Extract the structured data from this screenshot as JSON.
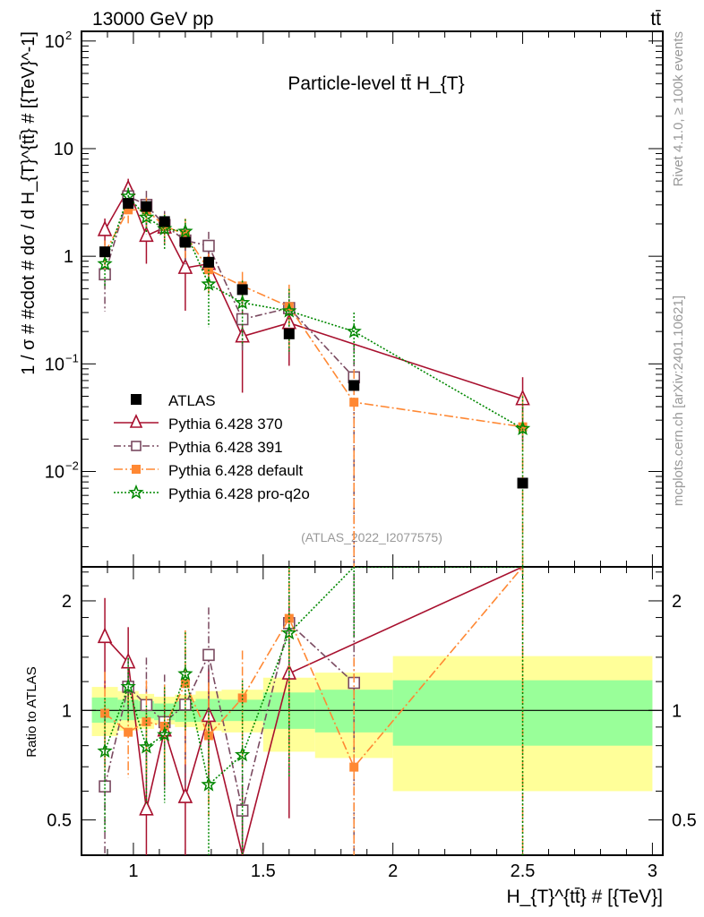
{
  "chart_data": {
    "type": "scatter",
    "header_left": "13000 GeV pp",
    "header_right": "tt̄",
    "title": "Particle-level tt̄  H_{T}",
    "xlabel": "H_{T}^{tt̄} # [{TeV}]",
    "ylabel": "1 / σ # #cdot # dσ / d H_{T}^{tt̄} # [{TeV}^-1]",
    "ratio_ylabel": "Ratio to ATLAS",
    "side_label_top": "Rivet 4.1.0, ≥ 100k events",
    "side_label_bottom": "mcplots.cern.ch [arXiv:2401.10621]",
    "analysis_label": "(ATLAS_2022_I2077575)",
    "xlim": [
      0.8,
      3.04
    ],
    "ylim": [
      0.0013,
      123
    ],
    "yscale": "log",
    "ratio_ylim": [
      0.4,
      2.48
    ],
    "ratio_yscale": "log",
    "x_ticks": [
      "1",
      "1.5",
      "2",
      "2.5",
      "3"
    ],
    "x_tick_values": [
      1,
      1.5,
      2,
      2.5,
      3
    ],
    "y_ticks": [
      "10^2",
      "10",
      "1",
      "10^-1",
      "10^-2"
    ],
    "y_tick_values": [
      100,
      10,
      1,
      0.1,
      0.01
    ],
    "ratio_ticks": [
      "2",
      "1",
      "0.5"
    ],
    "ratio_tick_values": [
      2,
      1,
      0.5
    ],
    "legend_position": "lower-left",
    "bin_edges": [
      0.84,
      0.94,
      1.02,
      1.08,
      1.16,
      1.24,
      1.34,
      1.5,
      1.7,
      2.0,
      3.0
    ],
    "x": [
      0.89,
      0.98,
      1.05,
      1.12,
      1.2,
      1.29,
      1.42,
      1.6,
      1.85,
      2.5
    ],
    "data": {
      "name": "ATLAS",
      "values": [
        1.1,
        3.1,
        2.9,
        2.1,
        1.35,
        0.88,
        0.49,
        0.19,
        0.063,
        0.0078
      ],
      "band_stat_lo": [
        0.925,
        0.94,
        0.95,
        0.94,
        0.93,
        0.93,
        0.935,
        0.89,
        0.87,
        0.8
      ],
      "band_stat_hi": [
        1.085,
        1.07,
        1.06,
        1.045,
        1.06,
        1.075,
        1.07,
        1.12,
        1.14,
        1.21
      ],
      "band_tot_lo": [
        0.85,
        0.88,
        0.89,
        0.915,
        0.9,
        0.88,
        0.87,
        0.77,
        0.74,
        0.6
      ],
      "band_tot_hi": [
        1.16,
        1.13,
        1.11,
        1.09,
        1.105,
        1.13,
        1.14,
        1.23,
        1.27,
        1.41
      ],
      "color": "#000000"
    },
    "series": [
      {
        "name": "Pythia 6.428 370",
        "color": "#a8102e",
        "marker": "triangle-open",
        "dash": "",
        "values": [
          1.75,
          4.2,
          1.55,
          1.85,
          0.78,
          0.85,
          0.18,
          0.24,
          null,
          0.047
        ],
        "rel_err": [
          0.28,
          0.25,
          0.45,
          0.3,
          0.6,
          0.35,
          0.7,
          0.6,
          null,
          0.6
        ]
      },
      {
        "name": "Pythia 6.428 391",
        "color": "#7a4a60",
        "marker": "square-open",
        "dash": "8,3,2,3",
        "values": [
          0.68,
          3.6,
          3.0,
          1.95,
          1.4,
          1.25,
          0.26,
          0.33,
          0.075,
          null
        ],
        "rel_err": [
          0.55,
          0.2,
          0.35,
          0.35,
          0.4,
          0.35,
          0.5,
          0.5,
          1.0,
          null
        ]
      },
      {
        "name": "Pythia 6.428 default",
        "color": "#ff8833",
        "marker": "square-filled",
        "dash": "10,3,2,3",
        "values": [
          1.08,
          2.7,
          2.7,
          1.9,
          1.6,
          0.75,
          0.53,
          0.34,
          0.044,
          0.026
        ],
        "rel_err": [
          0.3,
          0.25,
          0.3,
          0.3,
          0.4,
          0.4,
          0.35,
          0.6,
          1.0,
          1.0
        ]
      },
      {
        "name": "Pythia 6.428 pro-q2o",
        "color": "#008800",
        "marker": "star",
        "dash": "2,2",
        "values": [
          0.85,
          3.6,
          2.3,
          1.8,
          1.7,
          0.55,
          0.37,
          0.31,
          0.2,
          0.025
        ],
        "rel_err": [
          0.4,
          0.2,
          0.3,
          0.35,
          0.3,
          0.6,
          0.6,
          0.6,
          0.5,
          1.0
        ]
      }
    ]
  }
}
